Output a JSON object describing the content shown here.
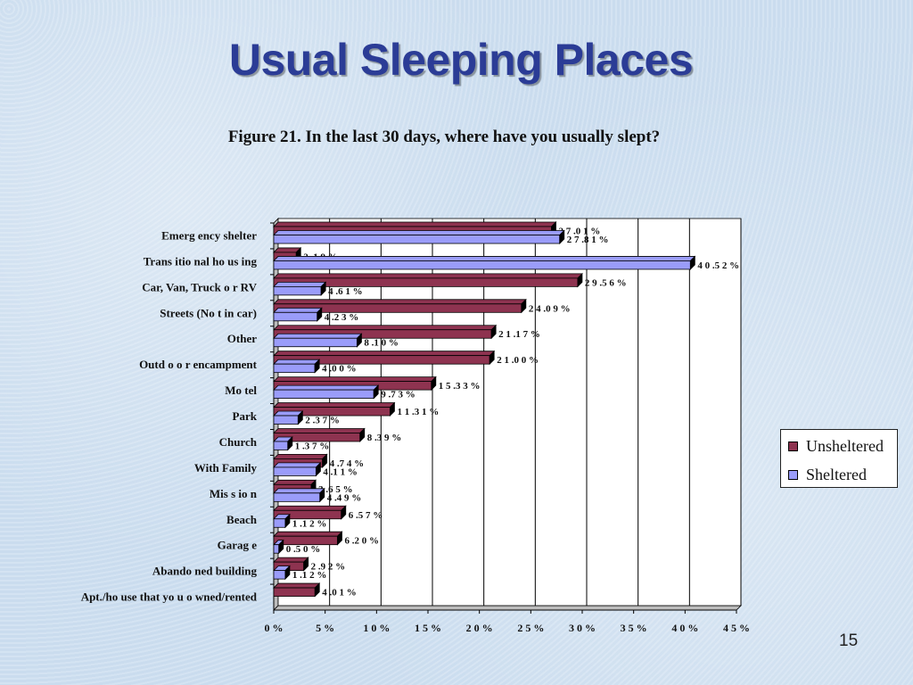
{
  "slide": {
    "title": "Usual Sleeping Places",
    "caption": "Figure 21.  In the last 30 days, where have you usually slept?",
    "page_number": "15"
  },
  "colors": {
    "unsheltered": "#8e3350",
    "sheltered": "#9a9cfa",
    "plot_bg": "#ffffff",
    "grid": "#000000"
  },
  "chart_data": {
    "type": "bar",
    "orientation": "horizontal",
    "title": "",
    "xlabel": "",
    "ylabel": "",
    "xlim": [
      0,
      45
    ],
    "x_ticks": [
      "0 %",
      "5 %",
      "1 0 %",
      "1 5 %",
      "2 0 %",
      "2 5 %",
      "3 0 %",
      "3 5 %",
      "4 0 %",
      "4 5 %"
    ],
    "grid": true,
    "legend_position": "right",
    "categories": [
      "Emerg ency shelter",
      "Trans itio nal ho us ing",
      "Car, Van, Truck o r RV",
      "Streets (No t in car)",
      "Other",
      "Outd o o r encampment",
      "Mo tel",
      "Park",
      "Church",
      "With Family",
      "Mis s io n",
      "Beach",
      "Garag e",
      "Abando ned building",
      "Apt./ho use that yo u o wned/rented"
    ],
    "series": [
      {
        "name": "Unsheltered",
        "values": [
          27.01,
          2.19,
          29.56,
          24.09,
          21.17,
          21.0,
          15.33,
          11.31,
          8.39,
          4.74,
          3.65,
          6.57,
          6.2,
          2.92,
          4.01
        ],
        "labels": [
          "2 7 .0 1 %",
          "2 .1 9 %",
          "2 9 .5 6 %",
          "2 4 .0 9 %",
          "2 1 .1 7 %",
          "2 1 .0 0 %",
          "1 5 .3 3 %",
          "1 1 .3 1 %",
          "8 .3 9 %",
          "4 .7 4 %",
          "3 .6 5 %",
          "6 .5 7 %",
          "6 .2 0 %",
          "2 .9 2 %",
          "4 .0 1 %"
        ]
      },
      {
        "name": "Sheltered",
        "values": [
          27.81,
          40.52,
          4.61,
          4.23,
          8.1,
          4.0,
          9.73,
          2.37,
          1.37,
          4.11,
          4.49,
          1.12,
          0.5,
          1.12,
          null
        ],
        "labels": [
          "2 7 .8 1 %",
          "4 0 .5 2 %",
          "4 .6 1 %",
          "4 .2 3 %",
          "8 .1 0 %",
          "4 .0 0 %",
          "9 .7 3 %",
          "2 .3 7 %",
          "1 .3 7 %",
          "4 .1 1 %",
          "4 .4 9 %",
          "1 .1 2 %",
          "0 .5 0 %",
          "1 .1 2 %",
          null
        ]
      }
    ]
  }
}
